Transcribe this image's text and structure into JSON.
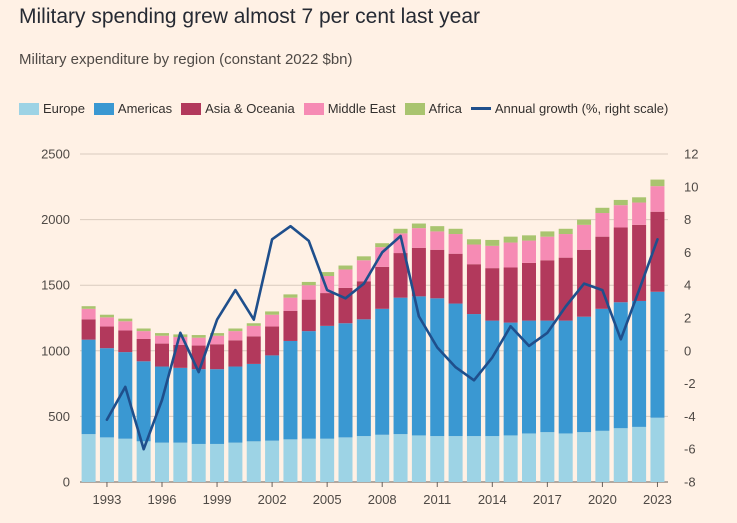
{
  "title": "Military spending grew almost 7 per cent last year",
  "subtitle": "Military expenditure by region (constant 2022 $bn)",
  "chart_data": {
    "type": "bar",
    "stacked": true,
    "title": "Military spending grew almost 7 per cent last year",
    "subtitle": "Military expenditure by region (constant 2022 $bn)",
    "categories": [
      "1992",
      "1993",
      "1994",
      "1995",
      "1996",
      "1997",
      "1998",
      "1999",
      "2000",
      "2001",
      "2002",
      "2003",
      "2004",
      "2005",
      "2006",
      "2007",
      "2008",
      "2009",
      "2010",
      "2011",
      "2012",
      "2013",
      "2014",
      "2015",
      "2016",
      "2017",
      "2018",
      "2019",
      "2020",
      "2021",
      "2022",
      "2023"
    ],
    "x_tick_labels": [
      "1993",
      "1996",
      "1999",
      "2002",
      "2005",
      "2008",
      "2011",
      "2014",
      "2017",
      "2020",
      "2023"
    ],
    "series": [
      {
        "name": "Europe",
        "color": "#9dd3e5",
        "values": [
          365,
          340,
          330,
          310,
          300,
          300,
          290,
          290,
          300,
          310,
          315,
          325,
          330,
          330,
          340,
          350,
          360,
          365,
          355,
          350,
          350,
          350,
          350,
          355,
          370,
          380,
          370,
          380,
          390,
          410,
          420,
          490
        ]
      },
      {
        "name": "Americas",
        "color": "#3a98d2",
        "values": [
          720,
          680,
          660,
          610,
          580,
          570,
          570,
          570,
          580,
          590,
          650,
          750,
          820,
          860,
          870,
          890,
          960,
          1040,
          1060,
          1050,
          1010,
          930,
          880,
          860,
          860,
          850,
          860,
          880,
          930,
          960,
          960,
          960
        ]
      },
      {
        "name": "Asia & Oceania",
        "color": "#b2395c",
        "values": [
          155,
          165,
          165,
          170,
          175,
          175,
          180,
          190,
          200,
          210,
          220,
          230,
          240,
          250,
          270,
          290,
          320,
          340,
          370,
          370,
          380,
          380,
          400,
          420,
          440,
          460,
          480,
          510,
          550,
          570,
          580,
          610
        ]
      },
      {
        "name": "Middle East",
        "color": "#f68bb4",
        "values": [
          80,
          70,
          70,
          60,
          60,
          60,
          60,
          65,
          70,
          80,
          90,
          100,
          110,
          130,
          140,
          160,
          150,
          150,
          150,
          140,
          150,
          150,
          170,
          190,
          170,
          180,
          180,
          190,
          180,
          170,
          170,
          195
        ]
      },
      {
        "name": "Africa",
        "color": "#a9c46f",
        "values": [
          20,
          20,
          20,
          20,
          20,
          20,
          20,
          20,
          20,
          20,
          25,
          25,
          25,
          30,
          30,
          30,
          30,
          35,
          35,
          40,
          40,
          40,
          45,
          45,
          40,
          40,
          40,
          40,
          40,
          40,
          40,
          50
        ]
      }
    ],
    "line_series": {
      "name": "Annual growth (%, right scale)",
      "color": "#1f4f8c",
      "categories": [
        "1993",
        "1994",
        "1995",
        "1996",
        "1997",
        "1998",
        "1999",
        "2000",
        "2001",
        "2002",
        "2003",
        "2004",
        "2005",
        "2006",
        "2007",
        "2008",
        "2009",
        "2010",
        "2011",
        "2012",
        "2013",
        "2014",
        "2015",
        "2016",
        "2017",
        "2018",
        "2019",
        "2020",
        "2021",
        "2022",
        "2023"
      ],
      "values": [
        -4.2,
        -2.2,
        -6.0,
        -3.0,
        1.1,
        -1.3,
        1.9,
        3.7,
        1.9,
        6.8,
        7.6,
        6.7,
        3.7,
        3.2,
        4.1,
        6.0,
        7.0,
        2.1,
        0.2,
        -1.0,
        -1.8,
        -0.4,
        1.5,
        0.3,
        1.1,
        2.7,
        4.1,
        3.7,
        0.7,
        3.7,
        6.8
      ]
    },
    "ylim": [
      0,
      2500
    ],
    "yticks": [
      0,
      500,
      1000,
      1500,
      2000,
      2500
    ],
    "y2lim": [
      -8,
      12
    ],
    "y2ticks": [
      -8,
      -6,
      -4,
      -2,
      0,
      2,
      4,
      6,
      8,
      10,
      12
    ],
    "grid": true,
    "legend_placement": "top"
  },
  "legend": [
    {
      "label": "Europe",
      "color": "#9dd3e5",
      "kind": "box"
    },
    {
      "label": "Americas",
      "color": "#3a98d2",
      "kind": "box"
    },
    {
      "label": "Asia & Oceania",
      "color": "#b2395c",
      "kind": "box"
    },
    {
      "label": "Middle East",
      "color": "#f68bb4",
      "kind": "box"
    },
    {
      "label": "Africa",
      "color": "#a9c46f",
      "kind": "box"
    },
    {
      "label": "Annual growth (%, right scale)",
      "color": "#1f4f8c",
      "kind": "line"
    }
  ]
}
